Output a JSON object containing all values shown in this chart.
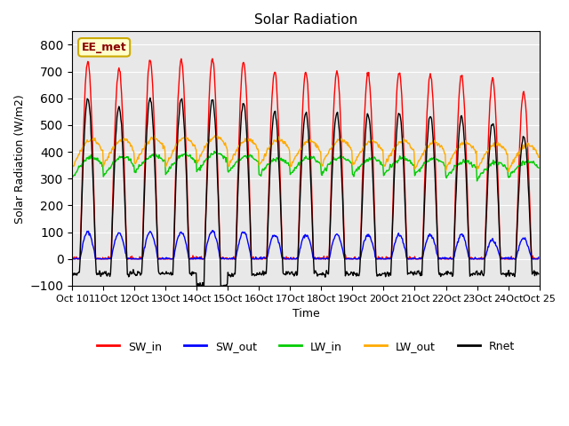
{
  "title": "Solar Radiation",
  "ylabel": "Solar Radiation (W/m2)",
  "xlabel": "Time",
  "ylim": [
    -100,
    850
  ],
  "yticks": [
    -100,
    0,
    100,
    200,
    300,
    400,
    500,
    600,
    700,
    800
  ],
  "annotation": "EE_met",
  "bg_color": "#e8e8e8",
  "colors": {
    "SW_in": "#ff0000",
    "SW_out": "#0000ff",
    "LW_in": "#00cc00",
    "LW_out": "#ffaa00",
    "Rnet": "#000000"
  },
  "n_days": 15,
  "dt": 0.5,
  "SW_in_peak": [
    740,
    715,
    745,
    745,
    748,
    735,
    700,
    695,
    700,
    695,
    698,
    690,
    688,
    675,
    620
  ],
  "SW_out_peak": [
    100,
    95,
    100,
    100,
    105,
    100,
    90,
    90,
    90,
    90,
    90,
    90,
    90,
    70,
    75
  ],
  "LW_in_base": [
    325,
    330,
    340,
    335,
    345,
    340,
    330,
    335,
    335,
    330,
    330,
    330,
    320,
    315,
    320
  ],
  "LW_in_peak_add": [
    55,
    50,
    45,
    55,
    50,
    45,
    45,
    45,
    45,
    45,
    45,
    45,
    45,
    45,
    45
  ],
  "LW_out_base": [
    370,
    375,
    380,
    375,
    385,
    375,
    375,
    370,
    375,
    370,
    370,
    365,
    365,
    360,
    355
  ],
  "LW_out_peak_add": [
    75,
    70,
    70,
    75,
    70,
    70,
    70,
    70,
    70,
    70,
    70,
    70,
    70,
    70,
    70
  ],
  "Rnet_night": [
    -55,
    -55,
    -55,
    -55,
    -100,
    -60,
    -55,
    -55,
    -55,
    -55,
    -55,
    -55,
    -55,
    -55,
    -55
  ],
  "Rnet_peak": [
    600,
    570,
    600,
    600,
    600,
    580,
    550,
    545,
    545,
    540,
    545,
    535,
    530,
    510,
    460
  ]
}
